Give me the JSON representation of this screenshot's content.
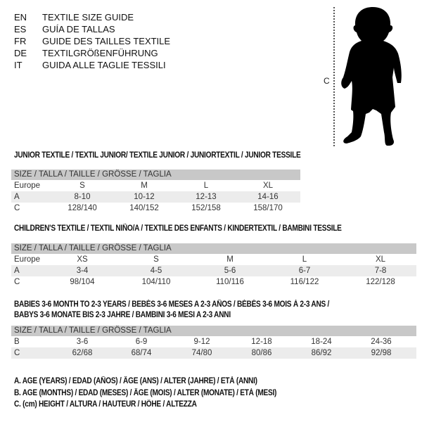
{
  "languages": [
    {
      "code": "EN",
      "text": "TEXTILE SIZE GUIDE"
    },
    {
      "code": "ES",
      "text": "GUÍA DE TALLAS"
    },
    {
      "code": "FR",
      "text": "GUIDE DES TAILLES TEXTILE"
    },
    {
      "code": "DE",
      "text": "TEXTILGRÖßENFÜHRUNG"
    },
    {
      "code": "IT",
      "text": "GUIDA ALLE TAGLIE TESSILI"
    }
  ],
  "figure": {
    "label": "C"
  },
  "size_header": "SIZE / TALLA / TAILLE / GRÖSSE / TAGLIA",
  "junior": {
    "title": "JUNIOR TEXTILE / TEXTIL JUNIOR/ TEXTILE JUNIOR / JUNIORTEXTIL / JUNIOR TESSILE",
    "rows": [
      {
        "label": "Europe",
        "cells": [
          "S",
          "M",
          "L",
          "XL"
        ]
      },
      {
        "label": "A",
        "cells": [
          "8-10",
          "10-12",
          "12-13",
          "14-16"
        ]
      },
      {
        "label": "C",
        "cells": [
          "128/140",
          "140/152",
          "152/158",
          "158/170"
        ]
      }
    ]
  },
  "children": {
    "title": "CHILDREN'S TEXTILE / TEXTIL NIÑO/A / TEXTILE DES ENFANTS / KINDERTEXTIL / BAMBINI TESSILE",
    "rows": [
      {
        "label": "Europe",
        "cells": [
          "XS",
          "S",
          "M",
          "L",
          "XL"
        ]
      },
      {
        "label": "A",
        "cells": [
          "3-4",
          "4-5",
          "5-6",
          "6-7",
          "7-8"
        ]
      },
      {
        "label": "C",
        "cells": [
          "98/104",
          "104/110",
          "110/116",
          "116/122",
          "122/128"
        ]
      }
    ]
  },
  "babies": {
    "title_line1": "BABIES 3-6 MONTH TO 2-3 YEARS / BEBÉS 3-6 MESES A 2-3 AÑOS / BÉBÉS 3-6 MOIS À 2-3 ANS /",
    "title_line2": "BABYS 3-6 MONATE BIS 2-3 JAHRE / BAMBINI 3-6 MESI A 2-3 ANNI",
    "rows": [
      {
        "label": "B",
        "cells": [
          "3-6",
          "6-9",
          "9-12",
          "12-18",
          "18-24",
          "24-36"
        ]
      },
      {
        "label": "C",
        "cells": [
          "62/68",
          "68/74",
          "74/80",
          "80/86",
          "86/92",
          "92/98"
        ]
      }
    ]
  },
  "legend": [
    "A. AGE (YEARS) / EDAD (AÑOS) / ÂGE (ANS) / ALTER (JAHRE) / ETÀ (ANNI)",
    "B. AGE (MONTHS) / EDAD (MESES) / ÂGE (MOIS) / ALTER (MONATE) / ETÀ (MESI)",
    "C. (cm) HEIGHT / ALTURA / HAUTEUR / HÖHE / ALTEZZA"
  ]
}
